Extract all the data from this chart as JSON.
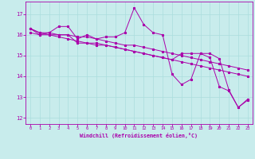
{
  "xlabel": "Windchill (Refroidissement éolien,°C)",
  "xlim": [
    -0.5,
    23.5
  ],
  "ylim": [
    11.7,
    17.6
  ],
  "yticks": [
    12,
    13,
    14,
    15,
    16,
    17
  ],
  "xticks": [
    0,
    1,
    2,
    3,
    4,
    5,
    6,
    7,
    8,
    9,
    10,
    11,
    12,
    13,
    14,
    15,
    16,
    17,
    18,
    19,
    20,
    21,
    22,
    23
  ],
  "bg_color": "#c8ecec",
  "line_color": "#aa00aa",
  "grid_color": "#aadddd",
  "series": [
    [
      16.3,
      16.0,
      16.1,
      16.4,
      16.4,
      15.8,
      16.0,
      15.8,
      15.9,
      15.9,
      16.1,
      17.3,
      16.5,
      16.1,
      16.0,
      14.1,
      13.6,
      13.85,
      15.1,
      15.1,
      14.85,
      13.35,
      12.5,
      12.9
    ],
    [
      16.1,
      16.0,
      16.0,
      16.0,
      16.0,
      15.6,
      15.6,
      15.5,
      15.5,
      15.4,
      15.3,
      15.2,
      15.1,
      15.0,
      14.9,
      14.8,
      14.7,
      14.6,
      14.5,
      14.4,
      14.3,
      14.2,
      14.1,
      14.0
    ],
    [
      16.3,
      16.1,
      16.1,
      16.0,
      16.0,
      15.9,
      15.9,
      15.8,
      15.7,
      15.6,
      15.5,
      15.5,
      15.4,
      15.3,
      15.2,
      15.1,
      15.0,
      14.9,
      14.8,
      14.7,
      14.6,
      14.5,
      14.4,
      14.3
    ],
    [
      16.3,
      16.1,
      16.0,
      15.9,
      15.8,
      15.7,
      15.6,
      15.6,
      15.5,
      15.4,
      15.3,
      15.2,
      15.1,
      15.0,
      14.9,
      14.8,
      15.1,
      15.1,
      15.1,
      14.9,
      13.5,
      13.3,
      12.5,
      12.85
    ]
  ]
}
